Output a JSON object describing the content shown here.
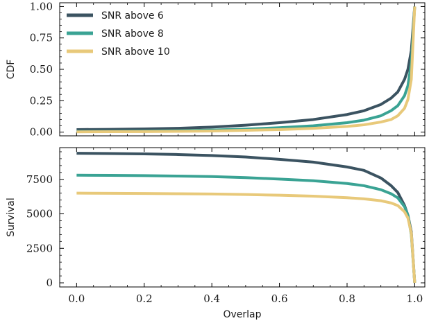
{
  "chart_data": [
    {
      "type": "line",
      "ylabel": "CDF",
      "xlim": [
        -0.05,
        1.03
      ],
      "ylim": [
        -0.03,
        1.03
      ],
      "xticks": [
        0.0,
        0.2,
        0.4,
        0.6,
        0.8,
        1.0
      ],
      "yticks": [
        0.0,
        0.25,
        0.5,
        0.75,
        1.0
      ],
      "ytick_labels": [
        "0.00",
        "0.25",
        "0.50",
        "0.75",
        "1.00"
      ],
      "x_tick_labels_shown": false,
      "legend": {
        "position": "top-left"
      },
      "series": [
        {
          "name": "SNR above 6",
          "color": "#3b5361",
          "x": [
            0.0,
            0.1,
            0.2,
            0.3,
            0.4,
            0.5,
            0.6,
            0.7,
            0.8,
            0.85,
            0.9,
            0.93,
            0.95,
            0.97,
            0.98,
            0.99,
            1.0
          ],
          "y": [
            0.02,
            0.022,
            0.025,
            0.03,
            0.04,
            0.055,
            0.075,
            0.1,
            0.14,
            0.17,
            0.22,
            0.27,
            0.32,
            0.42,
            0.5,
            0.65,
            1.0
          ]
        },
        {
          "name": "SNR above 8",
          "color": "#3aa394",
          "x": [
            0.0,
            0.1,
            0.2,
            0.3,
            0.4,
            0.5,
            0.6,
            0.7,
            0.8,
            0.85,
            0.9,
            0.93,
            0.95,
            0.97,
            0.98,
            0.99,
            1.0
          ],
          "y": [
            0.005,
            0.006,
            0.008,
            0.011,
            0.016,
            0.024,
            0.035,
            0.05,
            0.075,
            0.095,
            0.13,
            0.17,
            0.21,
            0.29,
            0.37,
            0.55,
            1.0
          ]
        },
        {
          "name": "SNR above 10",
          "color": "#e8c97a",
          "x": [
            0.0,
            0.1,
            0.2,
            0.3,
            0.4,
            0.5,
            0.6,
            0.7,
            0.8,
            0.85,
            0.9,
            0.93,
            0.95,
            0.97,
            0.98,
            0.99,
            1.0
          ],
          "y": [
            0.002,
            0.003,
            0.004,
            0.006,
            0.009,
            0.014,
            0.02,
            0.03,
            0.045,
            0.058,
            0.08,
            0.1,
            0.13,
            0.19,
            0.26,
            0.42,
            1.0
          ]
        }
      ]
    },
    {
      "type": "line",
      "xlabel": "Overlap",
      "ylabel": "Survival",
      "xlim": [
        -0.05,
        1.03
      ],
      "ylim": [
        -300,
        9800
      ],
      "xticks": [
        0.0,
        0.2,
        0.4,
        0.6,
        0.8,
        1.0
      ],
      "xtick_labels": [
        "0.0",
        "0.2",
        "0.4",
        "0.6",
        "0.8",
        "1.0"
      ],
      "yticks": [
        0,
        2500,
        5000,
        7500
      ],
      "ytick_labels": [
        "0",
        "2500",
        "5000",
        "7500"
      ],
      "series": [
        {
          "name": "SNR above 6",
          "color": "#3b5361",
          "x": [
            0.0,
            0.1,
            0.2,
            0.3,
            0.4,
            0.5,
            0.6,
            0.7,
            0.8,
            0.85,
            0.9,
            0.93,
            0.95,
            0.97,
            0.98,
            0.99,
            1.0
          ],
          "y": [
            9390,
            9370,
            9350,
            9300,
            9230,
            9120,
            8950,
            8750,
            8400,
            8150,
            7600,
            7050,
            6550,
            5600,
            4900,
            3700,
            0
          ]
        },
        {
          "name": "SNR above 8",
          "color": "#3aa394",
          "x": [
            0.0,
            0.1,
            0.2,
            0.3,
            0.4,
            0.5,
            0.6,
            0.7,
            0.8,
            0.85,
            0.9,
            0.93,
            0.95,
            0.97,
            0.98,
            0.99,
            1.0
          ],
          "y": [
            7800,
            7790,
            7770,
            7740,
            7700,
            7630,
            7520,
            7400,
            7200,
            7040,
            6750,
            6460,
            6160,
            5520,
            4900,
            3500,
            0
          ]
        },
        {
          "name": "SNR above 10",
          "color": "#e8c97a",
          "x": [
            0.0,
            0.1,
            0.2,
            0.3,
            0.4,
            0.5,
            0.6,
            0.7,
            0.8,
            0.85,
            0.9,
            0.93,
            0.95,
            0.97,
            0.98,
            0.99,
            1.0
          ],
          "y": [
            6500,
            6490,
            6480,
            6460,
            6440,
            6400,
            6350,
            6280,
            6170,
            6090,
            5950,
            5790,
            5600,
            5150,
            4700,
            3600,
            0
          ]
        }
      ]
    }
  ]
}
